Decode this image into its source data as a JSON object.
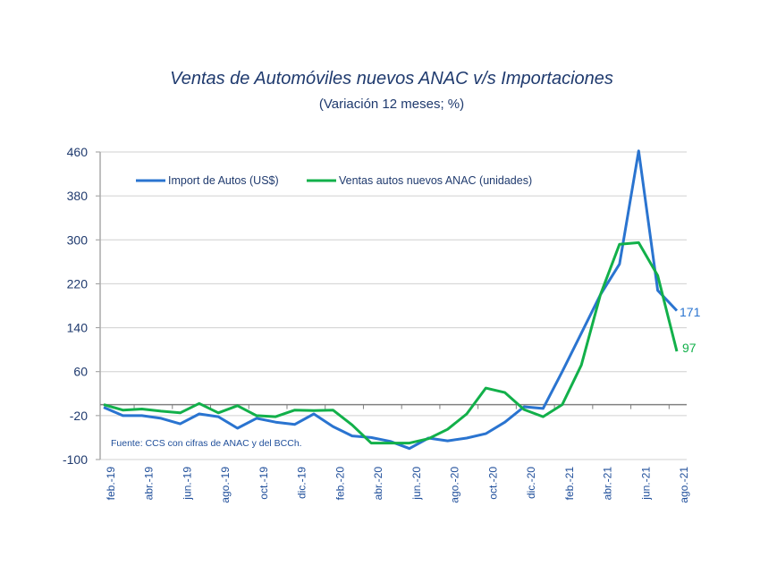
{
  "chart_data": {
    "type": "line",
    "title": "Ventas de Automóviles nuevos ANAC v/s Importaciones",
    "subtitle": "(Variación 12 meses; %)",
    "xlabel": "",
    "ylabel": "",
    "ylim": [
      -100,
      460
    ],
    "yticks": [
      460,
      380,
      300,
      220,
      140,
      60,
      -20,
      -100
    ],
    "grid": true,
    "legend_position": "top-left",
    "categories": [
      "feb.-19",
      "mar.-19",
      "abr.-19",
      "may.-19",
      "jun.-19",
      "jul.-19",
      "ago.-19",
      "sep.-19",
      "oct.-19",
      "nov.-19",
      "dic.-19",
      "ene.-20",
      "feb.-20",
      "mar.-20",
      "abr.-20",
      "may.-20",
      "jun.-20",
      "jul.-20",
      "ago.-20",
      "sep.-20",
      "oct.-20",
      "nov.-20",
      "dic.-20",
      "ene.-21",
      "feb.-21",
      "mar.-21",
      "abr.-21",
      "may.-21",
      "jun.-21",
      "jul.-21",
      "ago.-21"
    ],
    "xtick_labels": [
      "feb.-19",
      "abr.-19",
      "jun.-19",
      "ago.-19",
      "oct.-19",
      "dic.-19",
      "feb.-20",
      "abr.-20",
      "jun.-20",
      "ago.-20",
      "oct.-20",
      "dic.-20",
      "feb.-21",
      "abr.-21",
      "jun.-21",
      "ago.-21"
    ],
    "series": [
      {
        "name": "Import de Autos (US$)",
        "color": "#2a74d0",
        "values": [
          -5,
          -20,
          -20,
          -25,
          -35,
          -17,
          -22,
          -43,
          -25,
          -32,
          -36,
          -17,
          -40,
          -57,
          -60,
          -67,
          -80,
          -61,
          -66,
          -61,
          -53,
          -32,
          -4,
          -7,
          60,
          130,
          200,
          256,
          462,
          208,
          171
        ],
        "end_label": "171"
      },
      {
        "name": "Ventas autos nuevos ANAC (unidades)",
        "color": "#12b04a",
        "values": [
          0,
          -10,
          -8,
          -12,
          -15,
          2,
          -15,
          -2,
          -20,
          -22,
          -10,
          -11,
          -10,
          -37,
          -70,
          -70,
          -70,
          -62,
          -45,
          -17,
          30,
          22,
          -9,
          -22,
          0,
          72,
          200,
          292,
          295,
          235,
          97
        ],
        "end_label": "97"
      }
    ],
    "annotation": "Fuente: CCS con cifras de ANAC y del BCCh."
  }
}
